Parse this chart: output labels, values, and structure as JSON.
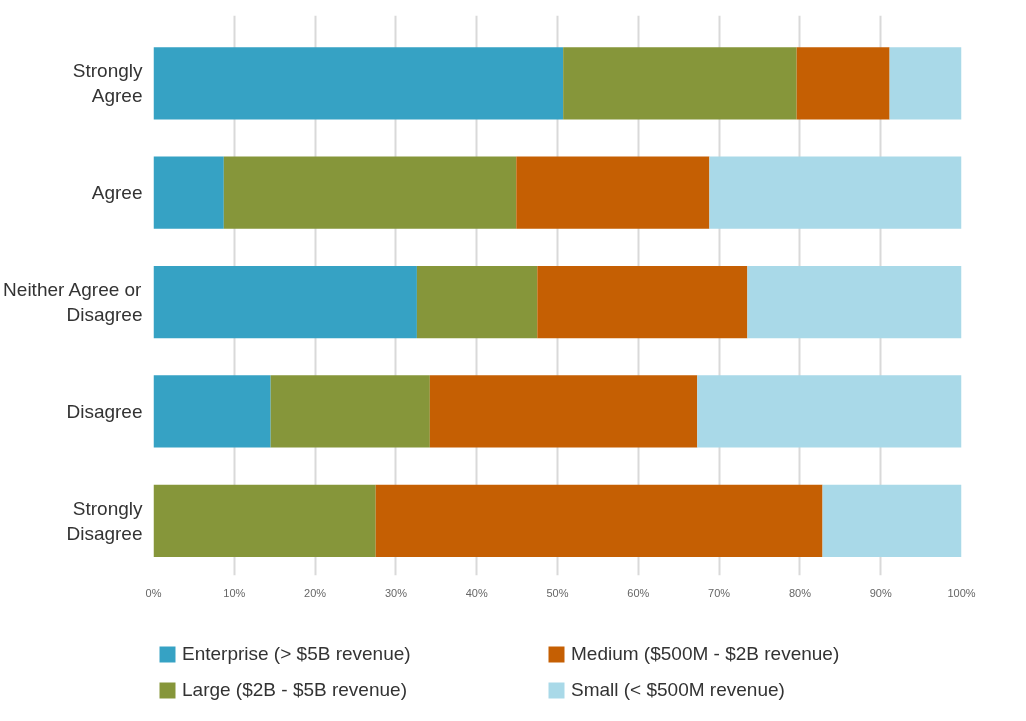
{
  "chart_data": {
    "type": "bar",
    "orientation": "horizontal",
    "stacked": true,
    "categories": [
      "Strongly Agree",
      "Agree",
      "Neither Agree or Disagree",
      "Disagree",
      "Strongly Disagree"
    ],
    "series": [
      {
        "name": "Enterprise (> $5B revenue)",
        "color": "#36a2c4",
        "values": [
          50.7,
          8.7,
          32.6,
          14.5,
          0
        ]
      },
      {
        "name": "Large ($2B - $5B revenue)",
        "color": "#86963a",
        "values": [
          28.9,
          36.2,
          14.9,
          19.7,
          27.5
        ]
      },
      {
        "name": "Medium ($500M - $2B revenue)",
        "color": "#c55f03",
        "values": [
          11.5,
          23.9,
          26.0,
          33.1,
          55.3
        ]
      },
      {
        "name": "Small (< $500M revenue)",
        "color": "#a9d9e8",
        "values": [
          8.9,
          31.2,
          26.5,
          32.7,
          17.2
        ]
      }
    ],
    "xlim": [
      0,
      100
    ],
    "xticks": [
      {
        "value": 0,
        "label": "0%"
      },
      {
        "value": 10,
        "label": "10%"
      },
      {
        "value": 20,
        "label": "20%"
      },
      {
        "value": 30,
        "label": "30%"
      },
      {
        "value": 40,
        "label": "40%"
      },
      {
        "value": 50,
        "label": "50%"
      },
      {
        "value": 60,
        "label": "60%"
      },
      {
        "value": 70,
        "label": "70%"
      },
      {
        "value": 80,
        "label": "80%"
      },
      {
        "value": 90,
        "label": "90%"
      },
      {
        "value": 100,
        "label": "100%"
      }
    ],
    "grid": "x",
    "legend": "bottom"
  }
}
